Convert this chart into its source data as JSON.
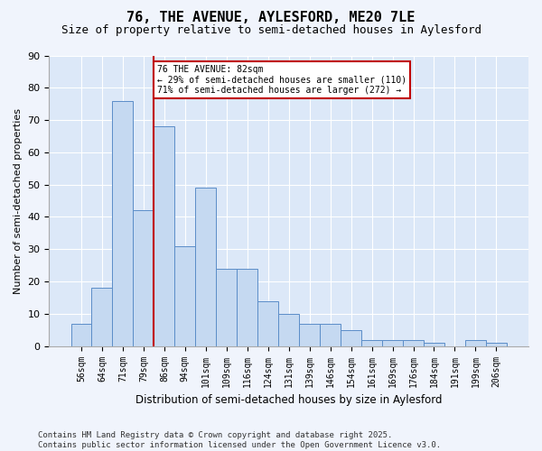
{
  "title": "76, THE AVENUE, AYLESFORD, ME20 7LE",
  "subtitle": "Size of property relative to semi-detached houses in Aylesford",
  "xlabel": "Distribution of semi-detached houses by size in Aylesford",
  "ylabel": "Number of semi-detached properties",
  "categories": [
    "56sqm",
    "64sqm",
    "71sqm",
    "79sqm",
    "86sqm",
    "94sqm",
    "101sqm",
    "109sqm",
    "116sqm",
    "124sqm",
    "131sqm",
    "139sqm",
    "146sqm",
    "154sqm",
    "161sqm",
    "169sqm",
    "176sqm",
    "184sqm",
    "191sqm",
    "199sqm",
    "206sqm"
  ],
  "values": [
    7,
    18,
    76,
    42,
    68,
    31,
    49,
    24,
    24,
    14,
    10,
    7,
    7,
    5,
    2,
    2,
    2,
    1,
    0,
    2,
    1
  ],
  "bar_color": "#c5d9f1",
  "bar_edge_color": "#5b8dc8",
  "vline_x": 3.5,
  "vline_color": "#c00000",
  "annotation_title": "76 THE AVENUE: 82sqm",
  "annotation_line1": "← 29% of semi-detached houses are smaller (110)",
  "annotation_line2": "71% of semi-detached houses are larger (272) →",
  "annotation_box_color": "#ffffff",
  "annotation_box_edge": "#c00000",
  "footer": "Contains HM Land Registry data © Crown copyright and database right 2025.\nContains public sector information licensed under the Open Government Licence v3.0.",
  "ylim": [
    0,
    90
  ],
  "yticks": [
    0,
    10,
    20,
    30,
    40,
    50,
    60,
    70,
    80,
    90
  ],
  "fig_bg_color": "#f0f4fc",
  "plot_bg_color": "#dce8f8",
  "title_fontsize": 11,
  "subtitle_fontsize": 9,
  "footer_fontsize": 6.5
}
